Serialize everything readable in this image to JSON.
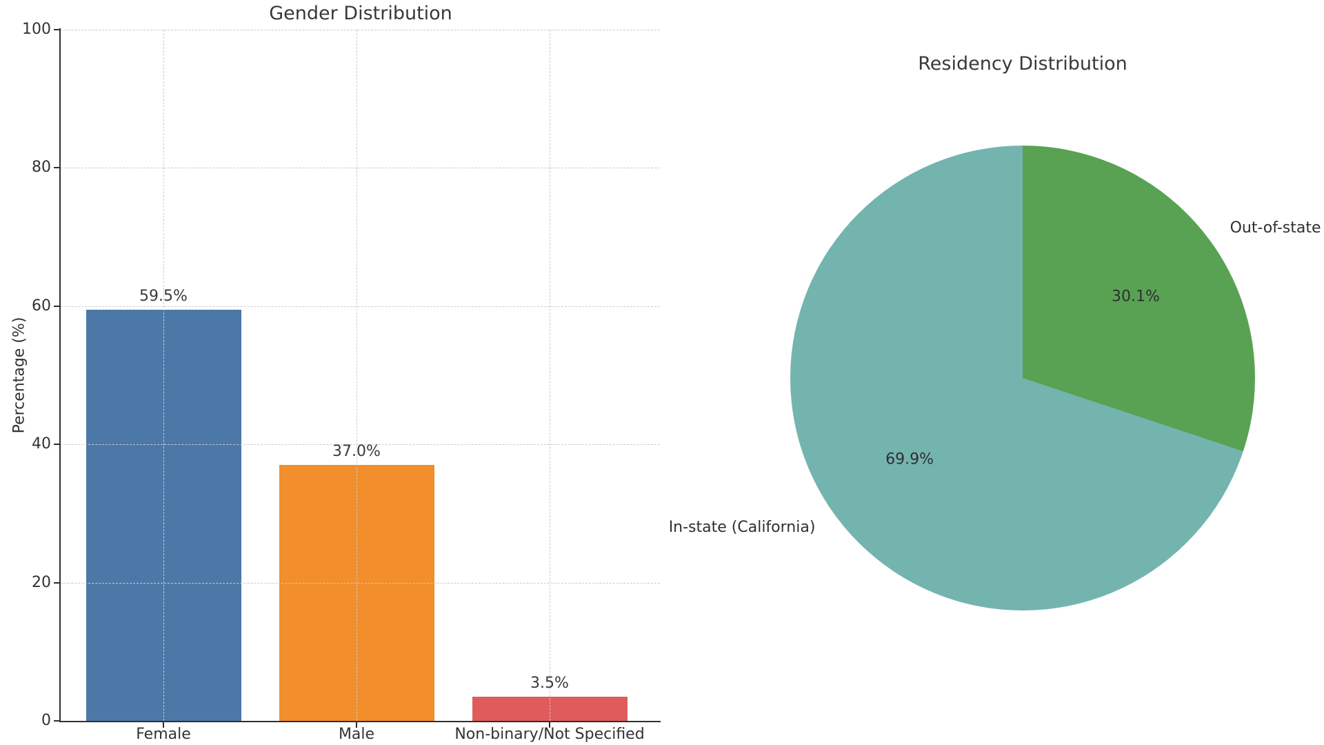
{
  "figure": {
    "background": "#ffffff"
  },
  "styles": {
    "text_color": "#333333",
    "title_color": "#383838",
    "grid_color": "#cbcbcb",
    "spine_color": "#2e2e2e"
  },
  "chart_data": [
    {
      "type": "bar",
      "title": "Gender Distribution",
      "categories": [
        "Female",
        "Male",
        "Non-binary/Not Specified"
      ],
      "values": [
        59.5,
        37.0,
        3.5
      ],
      "value_labels": [
        "59.5%",
        "37.0%",
        "3.5%"
      ],
      "bar_colors": [
        "#4b78a7",
        "#f28e2b",
        "#e05c5c"
      ],
      "xlabel": "",
      "ylabel": "Percentage (%)",
      "ylim": [
        0,
        100
      ],
      "yticks": [
        0,
        20,
        40,
        60,
        80,
        100
      ],
      "grid": "dashed, horizontal and vertical, drawn over bars",
      "legend": "none"
    },
    {
      "type": "pie",
      "title": "Residency Distribution",
      "labels": [
        "In-state (California)",
        "Out-of-state"
      ],
      "values": [
        69.9,
        30.1
      ],
      "pct_labels": [
        "69.9%",
        "30.1%"
      ],
      "colors": [
        "#74b4ae",
        "#59a253"
      ],
      "start_angle_deg": 90,
      "direction": "counterclockwise",
      "legend": "none"
    }
  ]
}
